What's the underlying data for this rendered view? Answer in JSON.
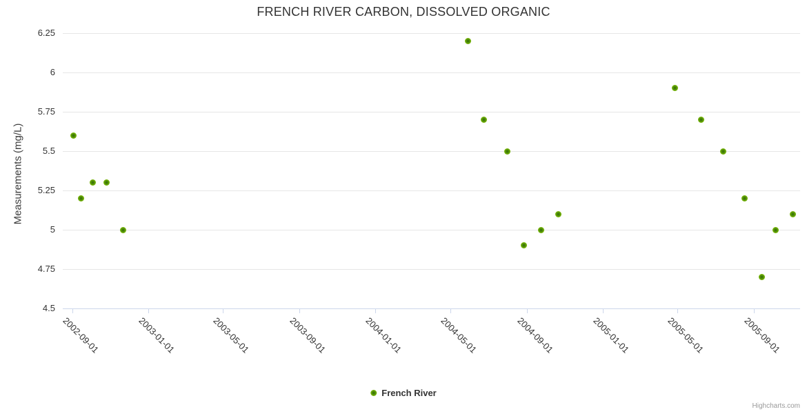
{
  "chart": {
    "credits": "Highcharts.com"
  },
  "chart_data": {
    "type": "scatter",
    "title": "FRENCH RIVER CARBON, DISSOLVED ORGANIC",
    "xlabel": "",
    "ylabel": "Measurements (mg/L)",
    "ylim": [
      4.5,
      6.25
    ],
    "y_ticks": [
      6.25,
      6,
      5.75,
      5.5,
      5.25,
      5,
      4.75,
      4.5
    ],
    "xlim": [
      "2002-08-17",
      "2005-11-14"
    ],
    "x_ticks": [
      "2002-09-01",
      "2003-01-01",
      "2003-05-01",
      "2003-09-01",
      "2004-01-01",
      "2004-05-01",
      "2004-09-01",
      "2005-01-01",
      "2005-05-01",
      "2005-09-01"
    ],
    "grid": true,
    "legend_position": "bottom",
    "series": [
      {
        "name": "French River",
        "color": "#72b007",
        "points": [
          {
            "x": "2002-09-03",
            "y": 5.6
          },
          {
            "x": "2002-09-15",
            "y": 5.2
          },
          {
            "x": "2002-10-04",
            "y": 5.3
          },
          {
            "x": "2002-10-26",
            "y": 5.3
          },
          {
            "x": "2002-11-22",
            "y": 5.0
          },
          {
            "x": "2004-05-29",
            "y": 6.2
          },
          {
            "x": "2004-06-24",
            "y": 5.7
          },
          {
            "x": "2004-07-31",
            "y": 5.5
          },
          {
            "x": "2004-08-27",
            "y": 4.9
          },
          {
            "x": "2004-09-24",
            "y": 5.0
          },
          {
            "x": "2004-10-21",
            "y": 5.1
          },
          {
            "x": "2005-04-27",
            "y": 5.9
          },
          {
            "x": "2005-06-08",
            "y": 5.7
          },
          {
            "x": "2005-07-13",
            "y": 5.5
          },
          {
            "x": "2005-08-17",
            "y": 5.2
          },
          {
            "x": "2005-09-14",
            "y": 4.7
          },
          {
            "x": "2005-10-06",
            "y": 5.0
          },
          {
            "x": "2005-11-02",
            "y": 5.1
          }
        ]
      }
    ],
    "colors": {
      "marker": "#72b007",
      "marker_center": "#366f02",
      "grid": "#e6e6e6",
      "axis": "#ccd6eb",
      "text": "#333333",
      "credits": "#999999"
    }
  }
}
